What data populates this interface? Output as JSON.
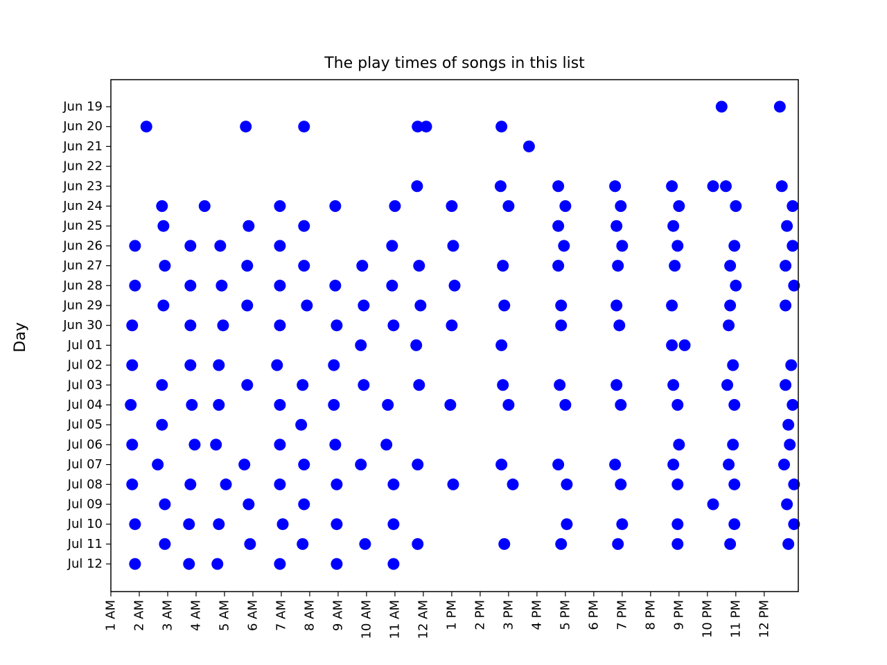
{
  "chart_data": {
    "type": "scatter",
    "title": "The play times of songs in this list",
    "xlabel": "",
    "ylabel": "Day",
    "x_unit": "hour of day (1.0 = 1 AM, 13.0 = 1 PM)",
    "x_ticks": [
      {
        "value": 1,
        "label": "1 AM"
      },
      {
        "value": 2,
        "label": "2 AM"
      },
      {
        "value": 3,
        "label": "3 AM"
      },
      {
        "value": 4,
        "label": "4 AM"
      },
      {
        "value": 5,
        "label": "5 AM"
      },
      {
        "value": 6,
        "label": "6 AM"
      },
      {
        "value": 7,
        "label": "7 AM"
      },
      {
        "value": 8,
        "label": "8 AM"
      },
      {
        "value": 9,
        "label": "9 AM"
      },
      {
        "value": 10,
        "label": "10 AM"
      },
      {
        "value": 11,
        "label": "11 AM"
      },
      {
        "value": 12,
        "label": "12 AM"
      },
      {
        "value": 13,
        "label": "1 PM"
      },
      {
        "value": 14,
        "label": "2 PM"
      },
      {
        "value": 15,
        "label": "3 PM"
      },
      {
        "value": 16,
        "label": "4 PM"
      },
      {
        "value": 17,
        "label": "5 PM"
      },
      {
        "value": 18,
        "label": "6 PM"
      },
      {
        "value": 19,
        "label": "7 PM"
      },
      {
        "value": 20,
        "label": "8 PM"
      },
      {
        "value": 21,
        "label": "9 PM"
      },
      {
        "value": 22,
        "label": "10 PM"
      },
      {
        "value": 23,
        "label": "11 PM"
      },
      {
        "value": 24,
        "label": "12 PM"
      }
    ],
    "xlim": [
      1,
      25.2
    ],
    "days": [
      "Jun 19",
      "Jun 20",
      "Jun 21",
      "Jun 22",
      "Jun 23",
      "Jun 24",
      "Jun 25",
      "Jun 26",
      "Jun 27",
      "Jun 28",
      "Jun 29",
      "Jun 30",
      "Jul 01",
      "Jul 02",
      "Jul 03",
      "Jul 04",
      "Jul 05",
      "Jul 06",
      "Jul 07",
      "Jul 08",
      "Jul 09",
      "Jul 10",
      "Jul 11",
      "Jul 12"
    ],
    "grid": false,
    "marker_color": "#0000ff",
    "series": [
      {
        "points": [
          {
            "day": "Jun 19",
            "hours": [
              22.5,
              24.55
            ]
          },
          {
            "day": "Jun 20",
            "hours": [
              2.25,
              5.75,
              7.8,
              11.8,
              12.1,
              14.75
            ]
          },
          {
            "day": "Jun 21",
            "hours": [
              15.72
            ]
          },
          {
            "day": "Jun 22",
            "hours": []
          },
          {
            "day": "Jun 23",
            "hours": [
              11.78,
              14.72,
              16.75,
              18.75,
              20.75,
              22.2,
              22.65,
              24.62
            ]
          },
          {
            "day": "Jun 24",
            "hours": [
              2.8,
              4.3,
              6.95,
              8.9,
              11.0,
              13.0,
              15.0,
              17.0,
              18.95,
              21.0,
              23.0,
              25.0
            ]
          },
          {
            "day": "Jun 25",
            "hours": [
              2.85,
              5.85,
              7.8,
              16.75,
              18.8,
              20.8,
              24.8
            ]
          },
          {
            "day": "Jun 26",
            "hours": [
              1.85,
              3.8,
              4.85,
              6.95,
              10.9,
              13.05,
              16.95,
              19.0,
              20.95,
              22.95,
              25.0
            ]
          },
          {
            "day": "Jun 27",
            "hours": [
              2.9,
              5.8,
              7.8,
              9.85,
              11.85,
              14.8,
              16.75,
              18.85,
              20.85,
              22.8,
              24.75
            ]
          },
          {
            "day": "Jun 28",
            "hours": [
              1.85,
              3.8,
              4.9,
              6.95,
              8.9,
              10.9,
              13.1,
              23.0,
              25.05
            ]
          },
          {
            "day": "Jun 29",
            "hours": [
              2.85,
              5.8,
              7.9,
              9.9,
              11.9,
              14.85,
              16.85,
              18.8,
              20.75,
              22.8,
              24.75
            ]
          },
          {
            "day": "Jun 30",
            "hours": [
              1.75,
              3.8,
              4.95,
              6.95,
              8.95,
              10.95,
              13.0,
              16.85,
              18.9,
              22.75
            ]
          },
          {
            "day": "Jul 01",
            "hours": [
              9.8,
              11.75,
              14.75,
              20.75,
              21.2
            ]
          },
          {
            "day": "Jul 02",
            "hours": [
              1.75,
              3.8,
              4.8,
              6.85,
              8.85,
              22.9,
              24.95
            ]
          },
          {
            "day": "Jul 03",
            "hours": [
              2.8,
              5.8,
              7.75,
              9.9,
              11.85,
              14.8,
              16.8,
              18.8,
              20.8,
              22.7,
              24.75
            ]
          },
          {
            "day": "Jul 04",
            "hours": [
              1.7,
              3.85,
              4.8,
              6.95,
              8.85,
              10.75,
              12.95,
              15.0,
              17.0,
              18.95,
              20.95,
              22.95,
              25.0
            ]
          },
          {
            "day": "Jul 05",
            "hours": [
              2.8,
              7.7,
              24.85
            ]
          },
          {
            "day": "Jul 06",
            "hours": [
              1.75,
              3.95,
              4.7,
              6.95,
              8.9,
              10.7,
              21.0,
              22.9,
              24.9
            ]
          },
          {
            "day": "Jul 07",
            "hours": [
              2.65,
              5.7,
              7.8,
              9.8,
              11.8,
              14.75,
              16.75,
              18.75,
              20.8,
              22.75,
              24.7
            ]
          },
          {
            "day": "Jul 08",
            "hours": [
              1.75,
              3.8,
              5.05,
              6.95,
              8.95,
              10.95,
              13.05,
              15.15,
              17.05,
              18.95,
              20.95,
              22.95,
              25.05
            ]
          },
          {
            "day": "Jul 09",
            "hours": [
              2.9,
              5.85,
              7.8,
              22.2,
              24.8
            ]
          },
          {
            "day": "Jul 10",
            "hours": [
              1.85,
              3.75,
              4.8,
              7.05,
              8.95,
              10.95,
              17.05,
              19.0,
              20.95,
              22.95,
              25.05
            ]
          },
          {
            "day": "Jul 11",
            "hours": [
              2.9,
              5.9,
              7.75,
              9.95,
              11.8,
              14.85,
              16.85,
              18.85,
              20.95,
              22.8,
              24.85
            ]
          },
          {
            "day": "Jul 12",
            "hours": [
              1.85,
              3.75,
              4.75,
              6.95,
              8.95,
              10.95
            ]
          }
        ]
      }
    ]
  }
}
